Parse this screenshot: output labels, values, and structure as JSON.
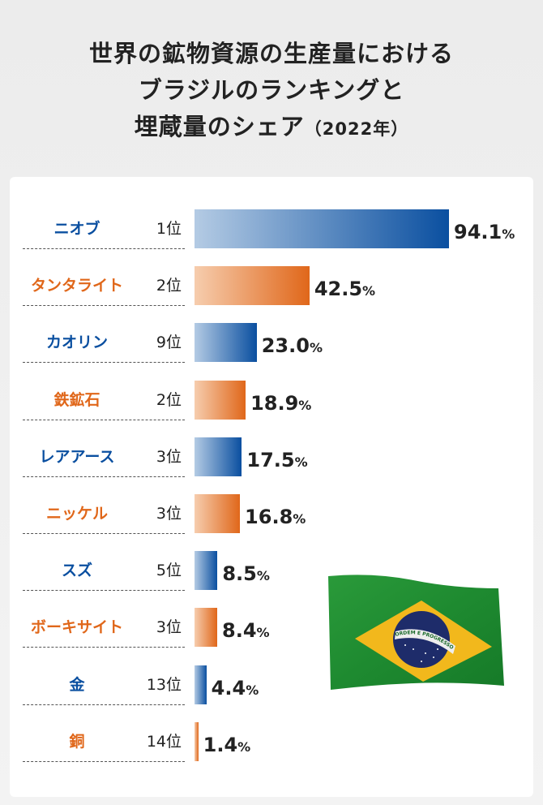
{
  "title": {
    "line1": "世界の鉱物資源の生産量における",
    "line2": "ブラジルのランキングと",
    "line3": "埋蔵量のシェア",
    "year": "（2022年）"
  },
  "colors": {
    "blue": "#0a4fa0",
    "orange": "#e0671a",
    "blue_light": "#b4cbe4",
    "orange_light": "#f6cdae"
  },
  "chart_data": {
    "type": "bar",
    "orientation": "horizontal",
    "categories": [
      "ニオブ",
      "タンタライト",
      "カオリン",
      "鉄鉱石",
      "レアアース",
      "ニッケル",
      "スズ",
      "ボーキサイト",
      "金",
      "銅"
    ],
    "ranks": [
      "1位",
      "2位",
      "9位",
      "2位",
      "3位",
      "3位",
      "5位",
      "3位",
      "13位",
      "14位"
    ],
    "values": [
      94.1,
      42.5,
      23.0,
      18.9,
      17.5,
      16.8,
      8.5,
      8.4,
      4.4,
      1.4
    ],
    "value_labels": [
      "94.1",
      "42.5",
      "23.0",
      "18.9",
      "17.5",
      "16.8",
      "8.5",
      "8.4",
      "4.4",
      "1.4"
    ],
    "unit": "%",
    "xlim": [
      0,
      100
    ],
    "grid": false,
    "title": ""
  },
  "flag": {
    "icon": "brazil-flag",
    "motto": "ORDEM E PROGRESSO"
  }
}
